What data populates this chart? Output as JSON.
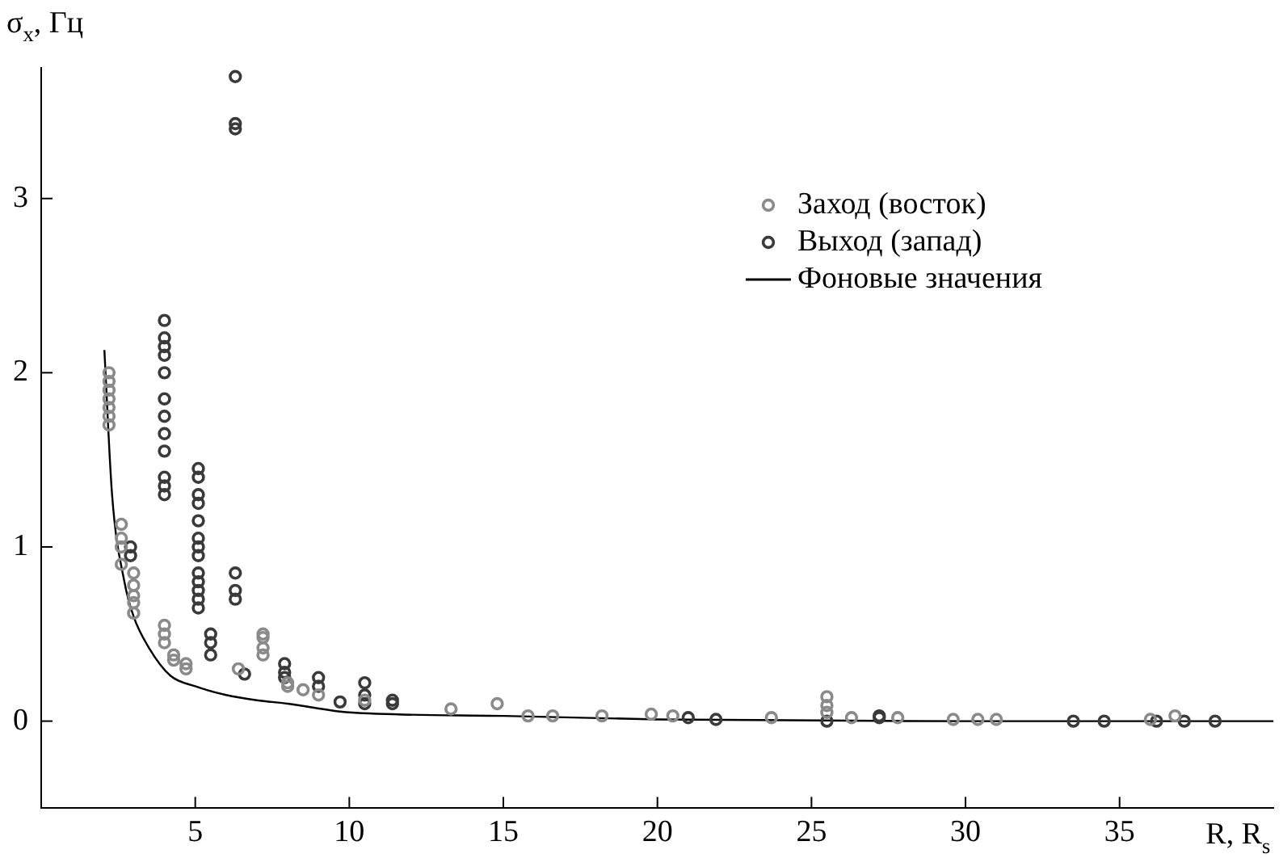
{
  "chart_data": {
    "type": "scatter",
    "xlabel": "R, R$_{s}$",
    "ylabel": "σ$_{x}$, Гц",
    "xlim": [
      0,
      40
    ],
    "ylim": [
      -0.5,
      3.75
    ],
    "xticks": [
      5,
      10,
      15,
      20,
      25,
      30,
      35
    ],
    "yticks": [
      0,
      1,
      2,
      3
    ],
    "grid": false,
    "legend": "top right",
    "marker": "circle",
    "series": [
      {
        "name": "Заход (восток)",
        "color": "#8a8a8a",
        "x": [
          2.2,
          2.2,
          2.2,
          2.2,
          2.2,
          2.2,
          2.2,
          2.6,
          2.6,
          2.6,
          2.6,
          3.0,
          3.0,
          3.0,
          3.0,
          3.0,
          4.0,
          4.0,
          4.0,
          4.3,
          4.3,
          4.7,
          4.7,
          6.4,
          7.2,
          7.2,
          7.2,
          7.2,
          8.0,
          8.0,
          8.5,
          9.0,
          10.5,
          13.3,
          14.8,
          15.8,
          16.6,
          18.2,
          19.8,
          20.5,
          23.7,
          25.5,
          25.5,
          25.5,
          26.3,
          27.8,
          29.6,
          30.4,
          31.0,
          36.0,
          36.8
        ],
        "values": [
          1.7,
          1.75,
          1.8,
          1.85,
          1.9,
          1.95,
          2.0,
          0.9,
          1.0,
          1.05,
          1.13,
          0.62,
          0.68,
          0.72,
          0.78,
          0.85,
          0.45,
          0.5,
          0.55,
          0.35,
          0.38,
          0.3,
          0.33,
          0.3,
          0.38,
          0.42,
          0.48,
          0.5,
          0.2,
          0.22,
          0.18,
          0.15,
          0.12,
          0.07,
          0.1,
          0.03,
          0.03,
          0.03,
          0.04,
          0.03,
          0.02,
          0.05,
          0.09,
          0.14,
          0.02,
          0.02,
          0.01,
          0.01,
          0.01,
          0.01,
          0.03
        ]
      },
      {
        "name": "Выход (запад)",
        "color": "#3a3a3a",
        "x": [
          2.9,
          2.9,
          4.0,
          4.0,
          4.0,
          4.0,
          4.0,
          4.0,
          4.0,
          4.0,
          4.0,
          4.0,
          4.0,
          4.0,
          5.1,
          5.1,
          5.1,
          5.1,
          5.1,
          5.1,
          5.1,
          5.1,
          5.1,
          5.1,
          5.1,
          5.1,
          5.1,
          5.5,
          5.5,
          5.5,
          6.3,
          6.3,
          6.3,
          6.3,
          6.3,
          6.3,
          6.6,
          7.9,
          7.9,
          7.9,
          9.0,
          9.0,
          9.7,
          10.5,
          10.5,
          10.5,
          11.4,
          11.4,
          21.0,
          21.9,
          25.5,
          27.2,
          27.2,
          33.5,
          34.5,
          36.2,
          37.1,
          38.1
        ],
        "values": [
          0.95,
          1.0,
          1.3,
          1.35,
          1.4,
          1.55,
          1.65,
          1.75,
          1.85,
          2.0,
          2.1,
          2.15,
          2.2,
          2.3,
          0.65,
          0.7,
          0.75,
          0.8,
          0.85,
          0.95,
          1.0,
          1.05,
          1.15,
          1.25,
          1.3,
          1.4,
          1.45,
          0.38,
          0.45,
          0.5,
          0.7,
          0.75,
          0.85,
          3.4,
          3.43,
          3.7,
          0.27,
          0.25,
          0.28,
          0.33,
          0.2,
          0.25,
          0.11,
          0.1,
          0.15,
          0.22,
          0.1,
          0.12,
          0.02,
          0.01,
          0.0,
          0.02,
          0.03,
          0.0,
          0.0,
          0.0,
          0.0,
          0.0
        ]
      },
      {
        "name": "Фоновые значения",
        "type": "line",
        "color": "#000000",
        "marker": "none",
        "line_style": "solid",
        "x": [
          2.05,
          2.3,
          2.7,
          3.0,
          3.5,
          4.2,
          5,
          6,
          7,
          8,
          10,
          15,
          20,
          30,
          40
        ],
        "values": [
          2.13,
          1.3,
          0.8,
          0.6,
          0.42,
          0.26,
          0.2,
          0.15,
          0.12,
          0.1,
          0.05,
          0.03,
          0.01,
          0.0,
          0.0
        ]
      }
    ]
  }
}
